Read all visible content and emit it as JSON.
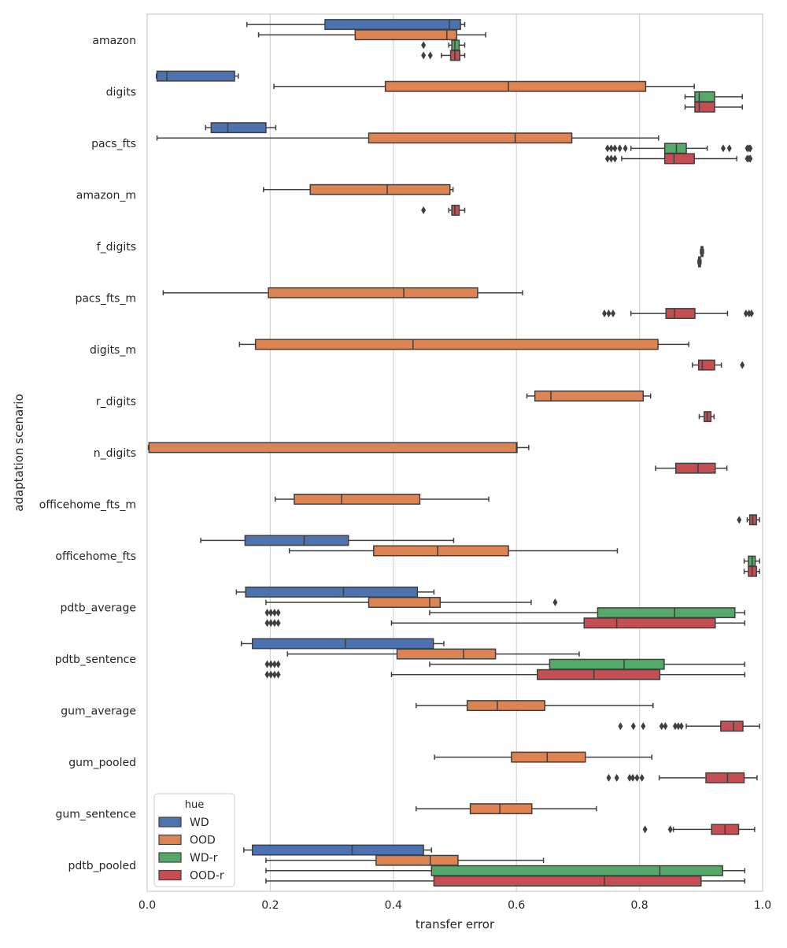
{
  "chart_data": {
    "type": "boxplot",
    "orientation": "horizontal",
    "title": "",
    "xlabel": "transfer error",
    "ylabel": "adaptation scenario",
    "xlim": [
      0.0,
      1.0
    ],
    "xticks": [
      0.0,
      0.2,
      0.4,
      0.6,
      0.8,
      1.0
    ],
    "xtick_labels": [
      "0.0",
      "0.2",
      "0.4",
      "0.6",
      "0.8",
      "1.0"
    ],
    "grid": "vertical",
    "legend": {
      "title": "hue",
      "position": "bottom-left",
      "entries": [
        {
          "name": "WD",
          "color": "#4c72b0"
        },
        {
          "name": "OOD",
          "color": "#dd8452"
        },
        {
          "name": "WD-r",
          "color": "#55a868"
        },
        {
          "name": "OOD-r",
          "color": "#c44e52"
        }
      ]
    },
    "categories": [
      "amazon",
      "digits",
      "pacs_fts",
      "amazon_m",
      "f_digits",
      "pacs_fts_m",
      "digits_m",
      "r_digits",
      "n_digits",
      "officehome_fts_m",
      "officehome_fts",
      "pdtb_average",
      "pdtb_sentence",
      "gum_average",
      "gum_pooled",
      "gum_sentence",
      "pdtb_pooled"
    ],
    "series": [
      {
        "name": "WD",
        "boxes": [
          {
            "category": "amazon",
            "min": 0.162,
            "q1": 0.289,
            "median": 0.491,
            "q3": 0.509,
            "max": 0.516,
            "outliers": []
          },
          {
            "category": "digits",
            "min": 0.015,
            "q1": 0.016,
            "median": 0.032,
            "q3": 0.142,
            "max": 0.148,
            "outliers": []
          },
          {
            "category": "pacs_fts",
            "min": 0.095,
            "q1": 0.104,
            "median": 0.131,
            "q3": 0.193,
            "max": 0.209,
            "outliers": []
          },
          {
            "category": "officehome_fts",
            "min": 0.087,
            "q1": 0.159,
            "median": 0.255,
            "q3": 0.327,
            "max": 0.498,
            "outliers": []
          },
          {
            "category": "pdtb_average",
            "min": 0.145,
            "q1": 0.16,
            "median": 0.319,
            "q3": 0.439,
            "max": 0.466,
            "outliers": []
          },
          {
            "category": "pdtb_sentence",
            "min": 0.153,
            "q1": 0.171,
            "median": 0.322,
            "q3": 0.465,
            "max": 0.482,
            "outliers": []
          },
          {
            "category": "pdtb_pooled",
            "min": 0.157,
            "q1": 0.171,
            "median": 0.333,
            "q3": 0.449,
            "max": 0.462,
            "outliers": []
          }
        ]
      },
      {
        "name": "OOD",
        "boxes": [
          {
            "category": "amazon",
            "min": 0.181,
            "q1": 0.338,
            "median": 0.487,
            "q3": 0.503,
            "max": 0.55,
            "outliers": []
          },
          {
            "category": "digits",
            "min": 0.206,
            "q1": 0.387,
            "median": 0.587,
            "q3": 0.81,
            "max": 0.889,
            "outliers": []
          },
          {
            "category": "pacs_fts",
            "min": 0.016,
            "q1": 0.36,
            "median": 0.598,
            "q3": 0.69,
            "max": 0.831,
            "outliers": []
          },
          {
            "category": "amazon_m",
            "min": 0.189,
            "q1": 0.265,
            "median": 0.39,
            "q3": 0.492,
            "max": 0.497,
            "outliers": []
          },
          {
            "category": "pacs_fts_m",
            "min": 0.026,
            "q1": 0.197,
            "median": 0.417,
            "q3": 0.537,
            "max": 0.61,
            "outliers": []
          },
          {
            "category": "digits_m",
            "min": 0.15,
            "q1": 0.176,
            "median": 0.432,
            "q3": 0.83,
            "max": 0.88,
            "outliers": []
          },
          {
            "category": "r_digits",
            "min": 0.617,
            "q1": 0.63,
            "median": 0.656,
            "q3": 0.806,
            "max": 0.818,
            "outliers": []
          },
          {
            "category": "n_digits",
            "min": 0.002,
            "q1": 0.003,
            "median": 0.6,
            "q3": 0.601,
            "max": 0.62,
            "outliers": []
          },
          {
            "category": "officehome_fts_m",
            "min": 0.208,
            "q1": 0.239,
            "median": 0.316,
            "q3": 0.443,
            "max": 0.555,
            "outliers": []
          },
          {
            "category": "officehome_fts",
            "min": 0.231,
            "q1": 0.368,
            "median": 0.472,
            "q3": 0.587,
            "max": 0.764,
            "outliers": []
          },
          {
            "category": "pdtb_average",
            "min": 0.193,
            "q1": 0.36,
            "median": 0.459,
            "q3": 0.476,
            "max": 0.624,
            "outliers": [
              0.663
            ]
          },
          {
            "category": "pdtb_sentence",
            "min": 0.228,
            "q1": 0.406,
            "median": 0.514,
            "q3": 0.566,
            "max": 0.702,
            "outliers": []
          },
          {
            "category": "gum_average",
            "min": 0.437,
            "q1": 0.52,
            "median": 0.569,
            "q3": 0.646,
            "max": 0.822,
            "outliers": []
          },
          {
            "category": "gum_pooled",
            "min": 0.467,
            "q1": 0.592,
            "median": 0.65,
            "q3": 0.712,
            "max": 0.82,
            "outliers": []
          },
          {
            "category": "gum_sentence",
            "min": 0.437,
            "q1": 0.525,
            "median": 0.573,
            "q3": 0.625,
            "max": 0.73,
            "outliers": []
          },
          {
            "category": "pdtb_pooled",
            "min": 0.193,
            "q1": 0.372,
            "median": 0.46,
            "q3": 0.505,
            "max": 0.644,
            "outliers": []
          }
        ]
      },
      {
        "name": "WD-r",
        "boxes": [
          {
            "category": "amazon",
            "min": 0.49,
            "q1": 0.495,
            "median": 0.5,
            "q3": 0.507,
            "max": 0.516,
            "outliers": [
              0.449
            ]
          },
          {
            "category": "digits",
            "min": 0.874,
            "q1": 0.89,
            "median": 0.897,
            "q3": 0.922,
            "max": 0.967,
            "outliers": []
          },
          {
            "category": "pacs_fts",
            "min": 0.786,
            "q1": 0.841,
            "median": 0.86,
            "q3": 0.876,
            "max": 0.91,
            "outliers": [
              0.748,
              0.754,
              0.76,
              0.768,
              0.777,
              0.936,
              0.946,
              0.975,
              0.978,
              0.98
            ]
          },
          {
            "category": "f_digits",
            "min": 0.899,
            "q1": 0.9,
            "median": 0.901,
            "q3": 0.903,
            "max": 0.904,
            "outliers": []
          },
          {
            "category": "officehome_fts",
            "min": 0.97,
            "q1": 0.977,
            "median": 0.983,
            "q3": 0.988,
            "max": 0.995,
            "outliers": []
          },
          {
            "category": "pdtb_average",
            "min": 0.459,
            "q1": 0.732,
            "median": 0.857,
            "q3": 0.955,
            "max": 0.971,
            "outliers": [
              0.195,
              0.201,
              0.207,
              0.213
            ]
          },
          {
            "category": "pdtb_sentence",
            "min": 0.459,
            "q1": 0.654,
            "median": 0.775,
            "q3": 0.84,
            "max": 0.971,
            "outliers": [
              0.195,
              0.201,
              0.207,
              0.213
            ]
          },
          {
            "category": "pdtb_pooled",
            "min": 0.193,
            "q1": 0.462,
            "median": 0.833,
            "q3": 0.935,
            "max": 0.971,
            "outliers": []
          }
        ]
      },
      {
        "name": "OOD-r",
        "boxes": [
          {
            "category": "amazon",
            "min": 0.478,
            "q1": 0.493,
            "median": 0.5,
            "q3": 0.508,
            "max": 0.516,
            "outliers": [
              0.449,
              0.46
            ]
          },
          {
            "category": "digits",
            "min": 0.874,
            "q1": 0.89,
            "median": 0.897,
            "q3": 0.922,
            "max": 0.967,
            "outliers": []
          },
          {
            "category": "pacs_fts",
            "min": 0.771,
            "q1": 0.841,
            "median": 0.856,
            "q3": 0.889,
            "max": 0.958,
            "outliers": [
              0.748,
              0.754,
              0.76,
              0.975,
              0.978,
              0.98
            ]
          },
          {
            "category": "amazon_m",
            "min": 0.49,
            "q1": 0.495,
            "median": 0.5,
            "q3": 0.507,
            "max": 0.516,
            "outliers": [
              0.449
            ]
          },
          {
            "category": "f_digits",
            "min": 0.895,
            "q1": 0.896,
            "median": 0.897,
            "q3": 0.899,
            "max": 0.9,
            "outliers": []
          },
          {
            "category": "pacs_fts_m",
            "min": 0.786,
            "q1": 0.843,
            "median": 0.857,
            "q3": 0.89,
            "max": 0.943,
            "outliers": [
              0.743,
              0.75,
              0.757,
              0.973,
              0.978,
              0.982
            ]
          },
          {
            "category": "digits_m",
            "min": 0.886,
            "q1": 0.896,
            "median": 0.902,
            "q3": 0.922,
            "max": 0.933,
            "outliers": [
              0.967
            ]
          },
          {
            "category": "r_digits",
            "min": 0.897,
            "q1": 0.905,
            "median": 0.91,
            "q3": 0.916,
            "max": 0.921,
            "outliers": []
          },
          {
            "category": "n_digits",
            "min": 0.826,
            "q1": 0.859,
            "median": 0.895,
            "q3": 0.923,
            "max": 0.942,
            "outliers": []
          },
          {
            "category": "officehome_fts_m",
            "min": 0.975,
            "q1": 0.979,
            "median": 0.984,
            "q3": 0.99,
            "max": 0.995,
            "outliers": [
              0.962
            ]
          },
          {
            "category": "officehome_fts",
            "min": 0.97,
            "q1": 0.977,
            "median": 0.983,
            "q3": 0.99,
            "max": 0.995,
            "outliers": []
          },
          {
            "category": "pdtb_average",
            "min": 0.397,
            "q1": 0.71,
            "median": 0.763,
            "q3": 0.923,
            "max": 0.971,
            "outliers": [
              0.195,
              0.201,
              0.207,
              0.213
            ]
          },
          {
            "category": "pdtb_sentence",
            "min": 0.397,
            "q1": 0.634,
            "median": 0.726,
            "q3": 0.833,
            "max": 0.971,
            "outliers": [
              0.195,
              0.201,
              0.207,
              0.213
            ]
          },
          {
            "category": "gum_average",
            "min": 0.876,
            "q1": 0.932,
            "median": 0.953,
            "q3": 0.968,
            "max": 0.995,
            "outliers": [
              0.769,
              0.79,
              0.806,
              0.836,
              0.842,
              0.858,
              0.863,
              0.868
            ]
          },
          {
            "category": "gum_pooled",
            "min": 0.832,
            "q1": 0.908,
            "median": 0.943,
            "q3": 0.97,
            "max": 0.991,
            "outliers": [
              0.75,
              0.763,
              0.784,
              0.789,
              0.796,
              0.804
            ]
          },
          {
            "category": "gum_sentence",
            "min": 0.855,
            "q1": 0.917,
            "median": 0.939,
            "q3": 0.961,
            "max": 0.987,
            "outliers": [
              0.809,
              0.85
            ]
          },
          {
            "category": "pdtb_pooled",
            "min": 0.193,
            "q1": 0.466,
            "median": 0.743,
            "q3": 0.9,
            "max": 0.971,
            "outliers": []
          }
        ]
      }
    ]
  }
}
